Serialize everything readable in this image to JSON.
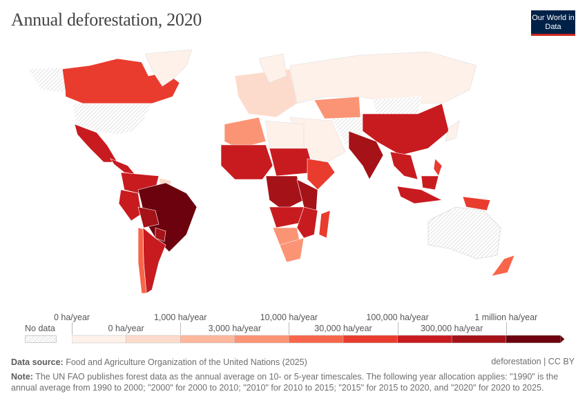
{
  "header": {
    "title": "Annual deforestation, 2020",
    "logo": "Our World in Data"
  },
  "legend": {
    "no_data_label": "No data",
    "colors": [
      "#fef1ea",
      "#fddbcc",
      "#fcb79c",
      "#fb9475",
      "#f7664a",
      "#e93c2e",
      "#c81b20",
      "#a51218",
      "#6b020e"
    ],
    "no_data_pattern": "hatched-gray",
    "top_labels": [
      "0 ha/year",
      "1,000 ha/year",
      "10,000 ha/year",
      "100,000 ha/year",
      "1 million ha/year"
    ],
    "bottom_labels": [
      "0 ha/year",
      "3,000 ha/year",
      "30,000 ha/year",
      "300,000 ha/year"
    ]
  },
  "map_data": {
    "regions": [
      {
        "name": "Canada",
        "bin": 5
      },
      {
        "name": "Greenland",
        "bin": 0
      },
      {
        "name": "United States",
        "bin": null
      },
      {
        "name": "Alaska",
        "bin": null
      },
      {
        "name": "Mexico",
        "bin": 6
      },
      {
        "name": "Central America",
        "bin": 6
      },
      {
        "name": "Colombia-Venezuela",
        "bin": 6
      },
      {
        "name": "Guianas",
        "bin": 1
      },
      {
        "name": "Peru",
        "bin": 6
      },
      {
        "name": "Brazil",
        "bin": 8
      },
      {
        "name": "Bolivia",
        "bin": 7
      },
      {
        "name": "Paraguay",
        "bin": 7
      },
      {
        "name": "Argentina",
        "bin": 6
      },
      {
        "name": "Chile",
        "bin": 4
      },
      {
        "name": "Europe",
        "bin": 1
      },
      {
        "name": "Scandinavia",
        "bin": 0
      },
      {
        "name": "Russia",
        "bin": 0
      },
      {
        "name": "Kazakhstan",
        "bin": 3
      },
      {
        "name": "Middle East",
        "bin": 0
      },
      {
        "name": "Central Asia",
        "bin": null
      },
      {
        "name": "Mongolia",
        "bin": null
      },
      {
        "name": "China",
        "bin": 6
      },
      {
        "name": "India",
        "bin": 7
      },
      {
        "name": "Southeast Asia",
        "bin": 6
      },
      {
        "name": "Indonesia",
        "bin": 6
      },
      {
        "name": "Borneo",
        "bin": 6
      },
      {
        "name": "Philippines",
        "bin": 5
      },
      {
        "name": "Papua New Guinea",
        "bin": 5
      },
      {
        "name": "Japan",
        "bin": 0
      },
      {
        "name": "Australia",
        "bin": null
      },
      {
        "name": "New Zealand",
        "bin": 4
      },
      {
        "name": "North Africa",
        "bin": 3
      },
      {
        "name": "Libya",
        "bin": 0
      },
      {
        "name": "West Africa",
        "bin": 6
      },
      {
        "name": "Sudan-Chad",
        "bin": 6
      },
      {
        "name": "Horn of Africa",
        "bin": 5
      },
      {
        "name": "DR Congo",
        "bin": 7
      },
      {
        "name": "Tanzania",
        "bin": 7
      },
      {
        "name": "Angola-Zambia",
        "bin": 6
      },
      {
        "name": "Mozambique",
        "bin": 6
      },
      {
        "name": "Namibia-Botswana",
        "bin": 3
      },
      {
        "name": "South Africa",
        "bin": 3
      },
      {
        "name": "Madagascar",
        "bin": 5
      }
    ]
  },
  "footer": {
    "source_label": "Data source:",
    "source": "Food and Agriculture Organization of the United Nations (2025)",
    "license": "deforestation | CC BY",
    "note_label": "Note:",
    "note": "The UN FAO publishes forest data as the annual average on 10- or 5-year timescales. The following year allocation applies: \"1990\" is the annual average from 1990 to 2000; \"2000\" for 2000 to 2010; \"2010\" for 2010 to 2015; \"2015\" for 2015 to 2020, and \"2020\" for 2020 to 2025."
  }
}
